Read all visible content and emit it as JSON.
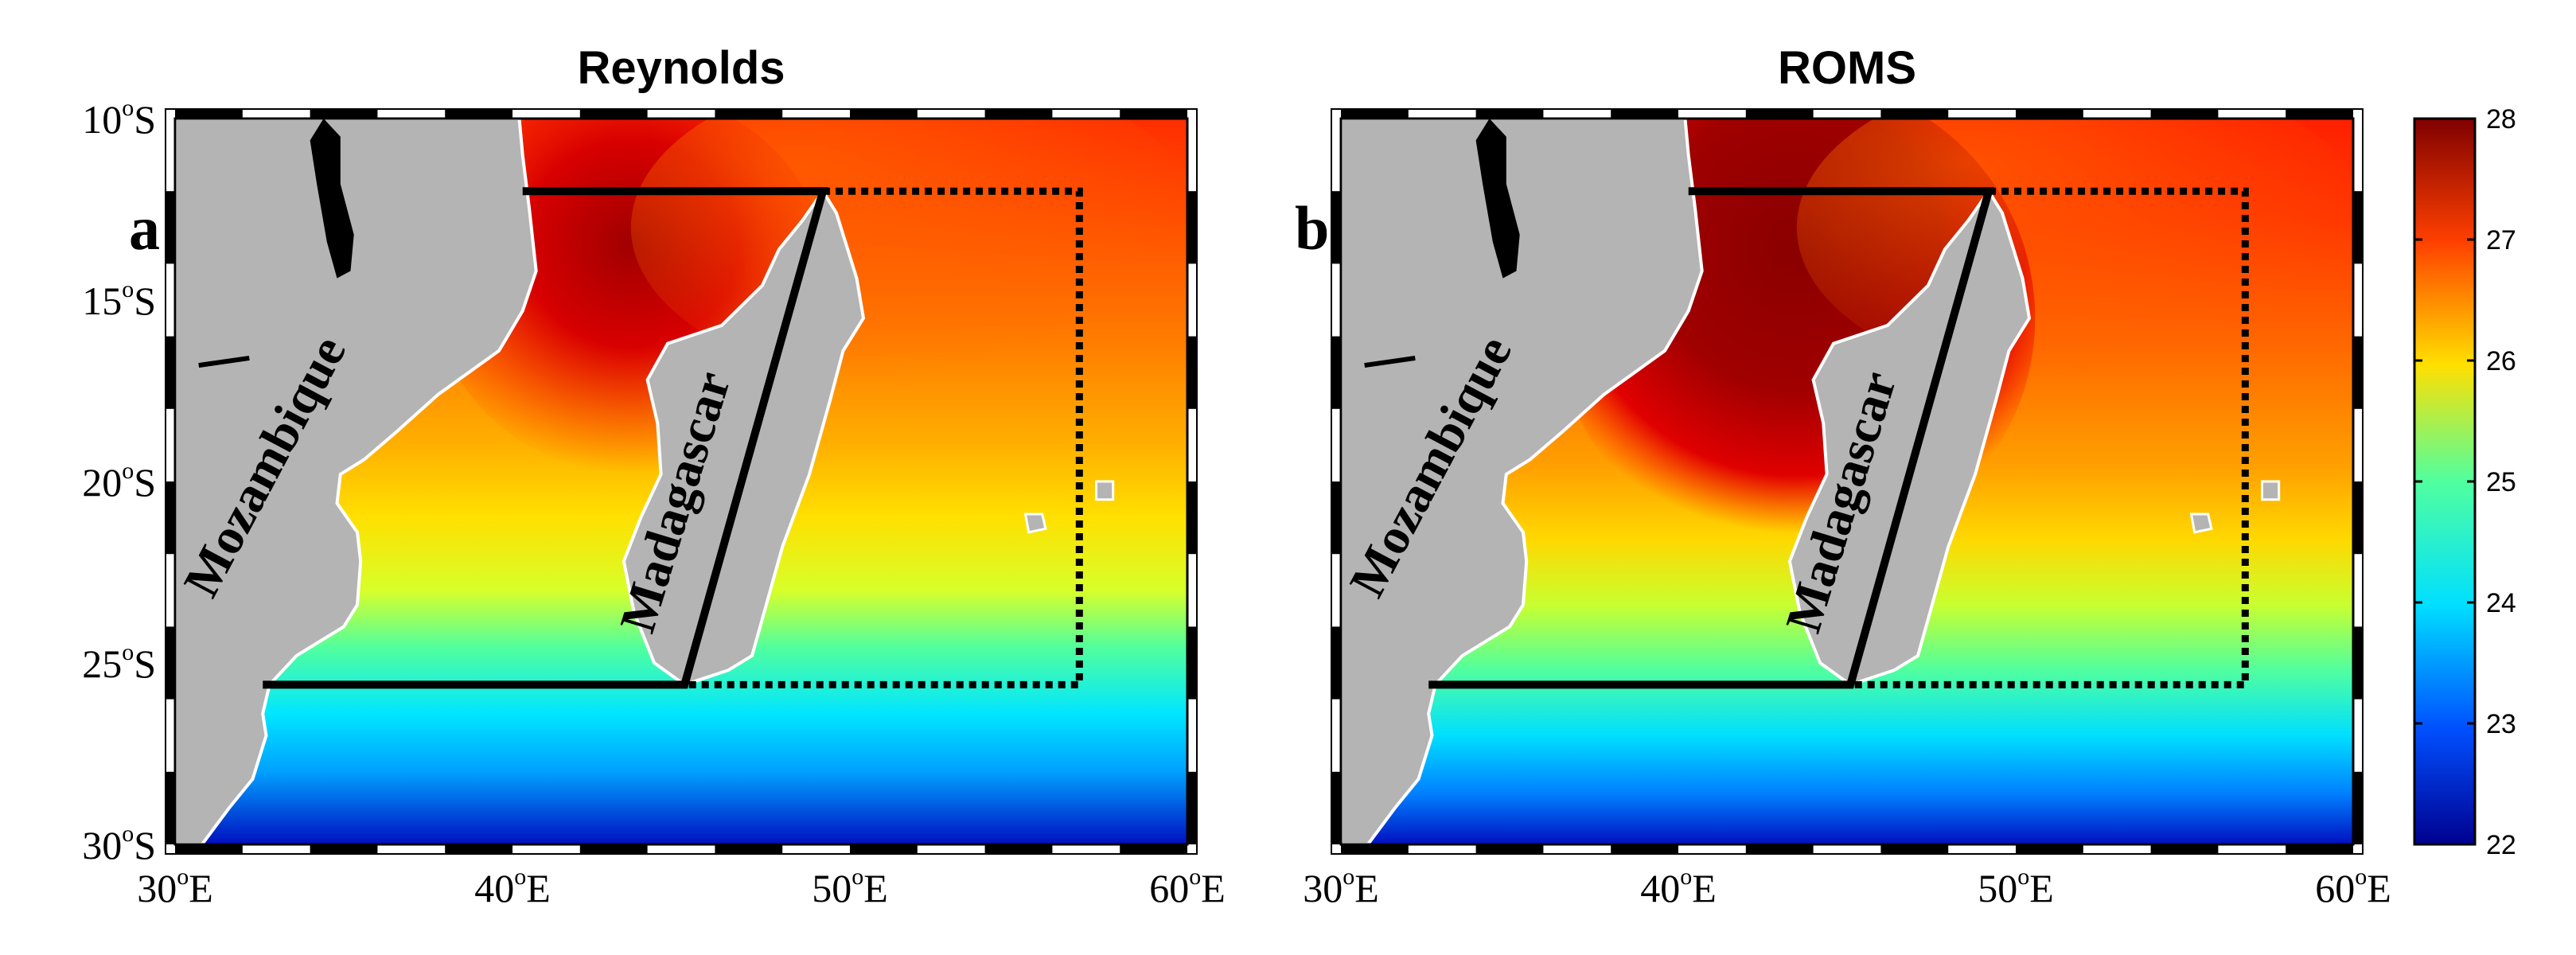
{
  "panels": [
    {
      "id": "a",
      "title": "Reynolds",
      "letter": "a",
      "labels": {
        "mozambique": "Mozambique",
        "madagascar": "Madagascar"
      }
    },
    {
      "id": "b",
      "title": "ROMS",
      "letter": "b",
      "labels": {
        "mozambique": "Mozambique",
        "madagascar": "Madagascar"
      }
    }
  ],
  "axes": {
    "lon_range": [
      30,
      60
    ],
    "lat_range": [
      -30,
      -10
    ],
    "x_ticks": [
      {
        "value": 30,
        "text": "30",
        "deg": "o",
        "hemi": "E"
      },
      {
        "value": 40,
        "text": "40",
        "deg": "o",
        "hemi": "E"
      },
      {
        "value": 50,
        "text": "50",
        "deg": "o",
        "hemi": "E"
      },
      {
        "value": 60,
        "text": "60",
        "deg": "o",
        "hemi": "E"
      }
    ],
    "y_ticks": [
      {
        "value": -10,
        "text": "10",
        "deg": "o",
        "hemi": "S"
      },
      {
        "value": -15,
        "text": "15",
        "deg": "o",
        "hemi": "S"
      },
      {
        "value": -20,
        "text": "20",
        "deg": "o",
        "hemi": "S"
      },
      {
        "value": -25,
        "text": "25",
        "deg": "o",
        "hemi": "S"
      },
      {
        "value": -30,
        "text": "30",
        "deg": "o",
        "hemi": "S"
      }
    ]
  },
  "colorbar": {
    "ticks": [
      "22",
      "23",
      "24",
      "25",
      "26",
      "27",
      "28"
    ],
    "range": [
      22,
      28
    ],
    "colormap": [
      "#00008f",
      "#0050ff",
      "#00dfff",
      "#50ff9f",
      "#ffe000",
      "#ff4000",
      "#800000"
    ]
  },
  "colors": {
    "land": "#b4b4b4",
    "land_outline": "#ffffff",
    "box_line": "#000000",
    "islands": "#000000"
  },
  "boxes": {
    "solid_north_lat": -12,
    "south_lat": -25.6,
    "west_lon": 32.6,
    "north_start_lon": 40.3,
    "east_lon": 56.8,
    "north_cut_lon": 49.2,
    "south_cut_lon": 45.1
  }
}
